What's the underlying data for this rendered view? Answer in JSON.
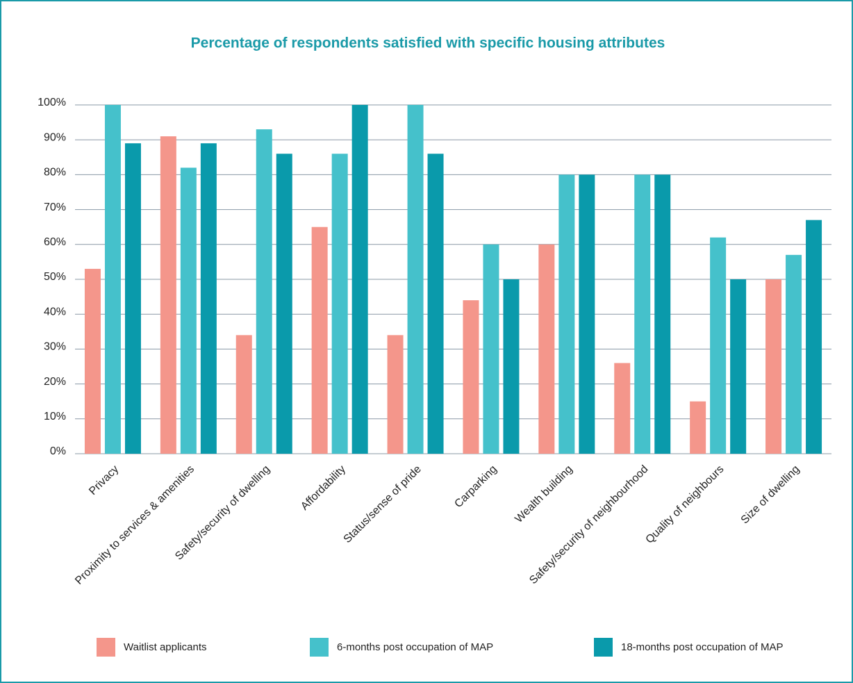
{
  "chart_data": {
    "type": "bar",
    "title": "Percentage of respondents satisfied with specific housing attributes",
    "categories": [
      "Privacy",
      "Proximity to services & amenities",
      "Safety/security of dwelling",
      "Affordability",
      "Status/sense of pride",
      "Carparking",
      "Wealth building",
      "Safety/security of neighbourhood",
      "Quality of neighbours",
      "Size of dwelling"
    ],
    "series": [
      {
        "name": "Waitlist applicants",
        "color": "#f4968b",
        "values": [
          53,
          91,
          34,
          65,
          34,
          44,
          60,
          26,
          15,
          50
        ]
      },
      {
        "name": "6-months post occupation of MAP",
        "color": "#45c1cb",
        "values": [
          100,
          82,
          93,
          86,
          100,
          60,
          80,
          80,
          62,
          57
        ]
      },
      {
        "name": "18-months post occupation of MAP",
        "color": "#0a9aab",
        "values": [
          89,
          89,
          86,
          100,
          86,
          50,
          80,
          80,
          50,
          67
        ]
      }
    ],
    "ylim": [
      0,
      100
    ],
    "yticks": [
      {
        "value": 0,
        "label": "0%"
      },
      {
        "value": 10,
        "label": "10%"
      },
      {
        "value": 20,
        "label": "20%"
      },
      {
        "value": 30,
        "label": "30%"
      },
      {
        "value": 40,
        "label": "40%"
      },
      {
        "value": 50,
        "label": "50%"
      },
      {
        "value": 60,
        "label": "60%"
      },
      {
        "value": 70,
        "label": "70%"
      },
      {
        "value": 80,
        "label": "80%"
      },
      {
        "value": 90,
        "label": "90%"
      },
      {
        "value": 100,
        "label": "100%"
      }
    ],
    "grid": true,
    "legend": "bottom"
  }
}
